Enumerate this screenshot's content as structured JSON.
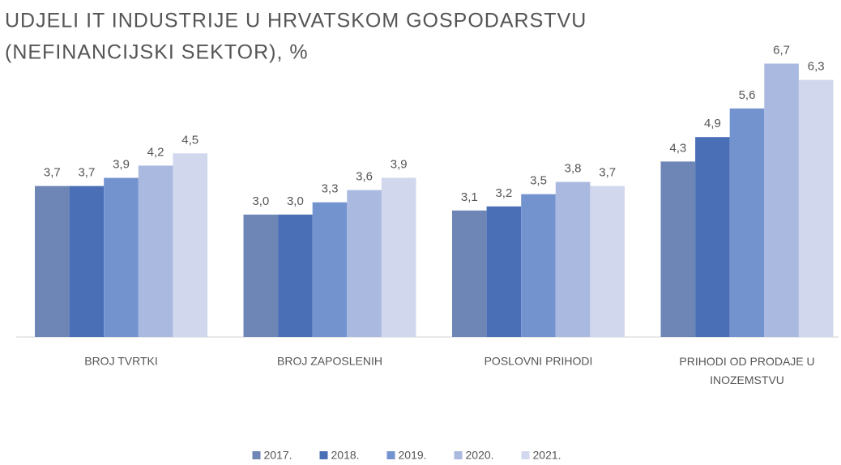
{
  "chart_data": {
    "type": "bar",
    "title": [
      "UDJELI IT INDUSTRIJE U HRVATSKOM GOSPODARSTVU",
      "(NEFINANCIJSKI SEKTOR), %"
    ],
    "categories": [
      "BROJ TVRTKI",
      "BROJ ZAPOSLENIH",
      "POSLOVNI PRIHODI",
      "PRIHODI OD PRODAJE U INOZEMSTVU"
    ],
    "series": [
      {
        "name": "2017.",
        "color": "#6e86b5",
        "values": [
          3.7,
          3.0,
          3.1,
          4.3
        ],
        "value_labels": [
          "3,7",
          "3,0",
          "3,1",
          "4,3"
        ]
      },
      {
        "name": "2018.",
        "color": "#4b6fb6",
        "values": [
          3.7,
          3.0,
          3.2,
          4.9
        ],
        "value_labels": [
          "3,7",
          "3,0",
          "3,2",
          "4,9"
        ]
      },
      {
        "name": "2019.",
        "color": "#7393cf",
        "values": [
          3.9,
          3.3,
          3.5,
          5.6
        ],
        "value_labels": [
          "3,9",
          "3,3",
          "3,5",
          "5,6"
        ]
      },
      {
        "name": "2020.",
        "color": "#aab9df",
        "values": [
          4.2,
          3.6,
          3.8,
          6.7
        ],
        "value_labels": [
          "4,2",
          "3,6",
          "3,8",
          "6,7"
        ]
      },
      {
        "name": "2021.",
        "color": "#d1d7ed",
        "values": [
          4.5,
          3.9,
          3.7,
          6.3
        ],
        "value_labels": [
          "4,5",
          "3,9",
          "3,7",
          "6,3"
        ]
      }
    ],
    "ylim": [
      0,
      8
    ]
  }
}
